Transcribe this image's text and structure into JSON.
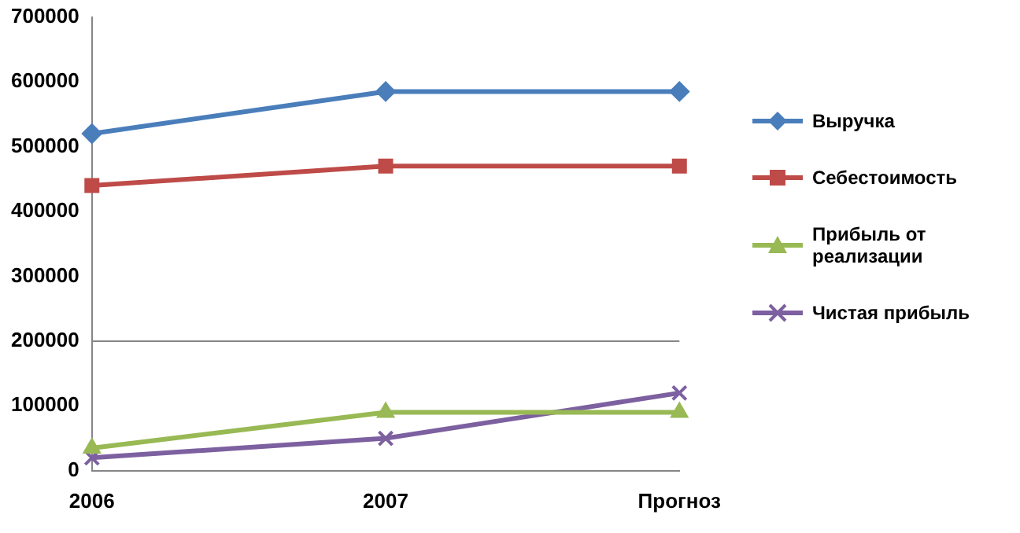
{
  "chart_data": {
    "type": "line",
    "categories": [
      "2006",
      "2007",
      "Прогноз"
    ],
    "series": [
      {
        "name": "Выручка",
        "color": "#4a7ebb",
        "marker": "diamond",
        "values": [
          520000,
          585000,
          585000
        ]
      },
      {
        "name": "Себестоимость",
        "color": "#be4b48",
        "marker": "square",
        "values": [
          440000,
          470000,
          470000
        ]
      },
      {
        "name": "Прибыль от реализации",
        "color": "#98b954",
        "marker": "triangle",
        "values": [
          35000,
          90000,
          90000
        ]
      },
      {
        "name": "Чистая прибыль",
        "color": "#7d60a0",
        "marker": "cross",
        "values": [
          20000,
          50000,
          120000
        ]
      }
    ],
    "ylim": [
      0,
      700000
    ],
    "yticks": [
      0,
      100000,
      200000,
      300000,
      400000,
      500000,
      600000,
      700000
    ],
    "ref_lines": [
      {
        "axis": "y",
        "value": 200000
      }
    ],
    "grid": false,
    "legend": "right",
    "line_style": "solid"
  }
}
